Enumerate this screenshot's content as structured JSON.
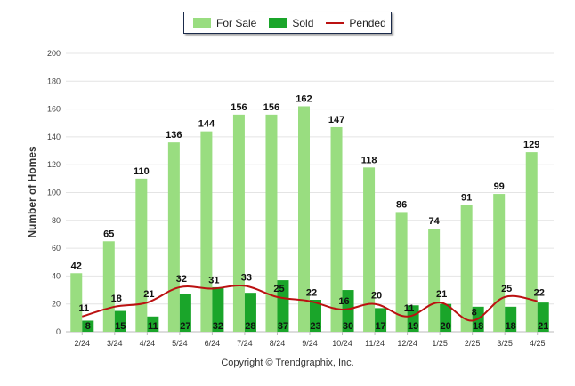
{
  "chart_data": {
    "type": "bar",
    "categories": [
      "2/24",
      "3/24",
      "4/24",
      "5/24",
      "6/24",
      "7/24",
      "8/24",
      "9/24",
      "10/24",
      "11/24",
      "12/24",
      "1/25",
      "2/25",
      "3/25",
      "4/25"
    ],
    "series": [
      {
        "name": "For Sale",
        "type": "bar",
        "color": "#99dd80",
        "values": [
          42,
          65,
          110,
          136,
          144,
          156,
          156,
          162,
          147,
          118,
          86,
          74,
          91,
          99,
          129
        ]
      },
      {
        "name": "Sold",
        "type": "bar",
        "color": "#1aa52a",
        "values": [
          8,
          15,
          11,
          27,
          32,
          28,
          37,
          23,
          30,
          17,
          19,
          20,
          18,
          18,
          21
        ]
      },
      {
        "name": "Pended",
        "type": "line",
        "color": "#bb1111",
        "values": [
          11,
          18,
          21,
          32,
          31,
          33,
          25,
          22,
          16,
          20,
          11,
          21,
          8,
          25,
          22
        ]
      }
    ],
    "ylabel": "Number of Homes",
    "ylim": [
      0,
      200
    ],
    "yticks": [
      0,
      20,
      40,
      60,
      80,
      100,
      120,
      140,
      160,
      180,
      200
    ],
    "grid": true,
    "legend": "top-center"
  },
  "copyright": "Copyright © Trendgraphix, Inc."
}
